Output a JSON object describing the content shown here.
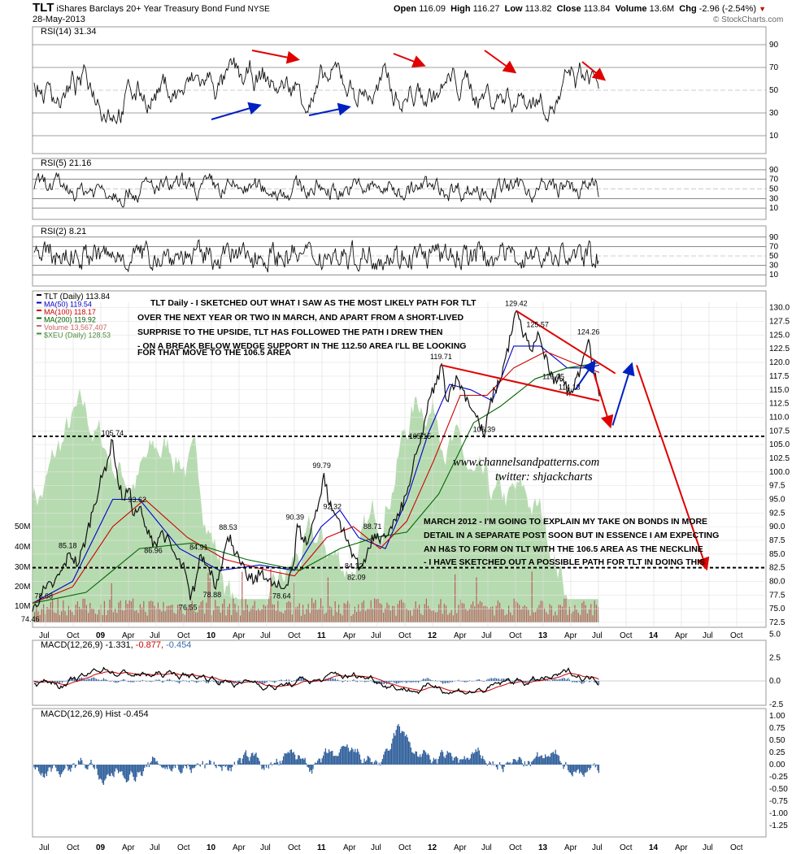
{
  "header": {
    "ticker": "TLT",
    "name": "iShares Barclays 20+ Year Treasury Bond Fund",
    "exchange": "NYSE",
    "date": "28-May-2013",
    "open_label": "Open",
    "open": "116.09",
    "high_label": "High",
    "high": "116.27",
    "low_label": "Low",
    "low": "113.82",
    "close_label": "Close",
    "close": "113.84",
    "volume_label": "Volume",
    "volume": "13.6M",
    "chg_label": "Chg",
    "chg": "-2.96 (-2.54%)",
    "chg_arrow": "▼",
    "copyright": "© StockCharts.com"
  },
  "panels": {
    "rsi14": {
      "label": "RSI(14) 31.34",
      "ticks": [
        "90",
        "70",
        "50",
        "30",
        "10"
      ]
    },
    "rsi5": {
      "label": "RSI(5) 21.16",
      "ticks": [
        "90",
        "70",
        "50",
        "30",
        "10"
      ]
    },
    "rsi2": {
      "label": "RSI(2) 8.21",
      "ticks": [
        "90",
        "70",
        "50",
        "30",
        "10"
      ]
    },
    "macd": {
      "label_prefix": "MACD(12,26,9)",
      "v1": "-1.331,",
      "v2": "-0.877,",
      "v3": "-0.454",
      "ticks": [
        "5.0",
        "2.5",
        "0.0",
        "-2.5"
      ]
    },
    "hist": {
      "label": "MACD(12,26,9) Hist -0.454",
      "ticks": [
        "1.00",
        "0.75",
        "0.50",
        "0.25",
        "0.00",
        "-0.25",
        "-0.50",
        "-0.75",
        "-1.00",
        "-1.25"
      ]
    }
  },
  "legend": [
    {
      "text": "TLT (Daily) 113.84",
      "color": "#000000"
    },
    {
      "text": "MA(50) 119.54",
      "color": "#0000cc"
    },
    {
      "text": "MA(100) 118.17",
      "color": "#cc0000"
    },
    {
      "text": "MA(200) 119.92",
      "color": "#006600"
    },
    {
      "text": "Volume 13,567,407",
      "color": "#cc6666"
    },
    {
      "text": "$XEU (Daily) 128.53",
      "color": "#4a8a3a"
    }
  ],
  "annotations": {
    "daily": [
      "TLT Daily - I SKETCHED OUT WHAT I SAW AS THE MOST LIKELY PATH FOR TLT",
      "OVER THE NEXT YEAR OR TWO IN MARCH, AND APART FROM A SHORT-LIVED",
      "SURPRISE TO THE UPSIDE, TLT HAS FOLLOWED THE PATH I DREW THEN",
      "- ON A BREAK BELOW WEDGE SUPPORT IN THE 112.50 AREA I'LL BE LOOKING",
      "FOR THAT MOVE TO THE 106.5 AREA"
    ],
    "march": [
      "MARCH 2012 - I'M GOING TO EXPLAIN MY TAKE ON BONDS IN MORE",
      "DETAIL IN A SEPARATE POST SOON BUT IN ESSENCE I AM EXPECTING",
      "AN H&S TO FORM ON TLT WITH THE 106.5 AREA AS THE NECKLINE",
      "- I HAVE SKETCHED OUT A POSSIBLE PATH FOR TLT IN DOING THIS"
    ],
    "website": "www.channelsandpatterns.com",
    "twitter": "twitter: shjackcharts"
  },
  "chart_data": {
    "type": "line",
    "x_labels": [
      "Jul",
      "Oct",
      "09",
      "Apr",
      "Jul",
      "Oct",
      "10",
      "Apr",
      "Jul",
      "Oct",
      "11",
      "Apr",
      "Jul",
      "Oct",
      "12",
      "Apr",
      "Jul",
      "Oct",
      "13",
      "Apr",
      "Jul",
      "Oct",
      "14",
      "Apr",
      "Jul",
      "Oct"
    ],
    "price_axis": {
      "ylim": [
        72.5,
        131
      ],
      "ticks": [
        "130.0",
        "127.5",
        "125.0",
        "122.5",
        "120.0",
        "117.5",
        "115.0",
        "112.5",
        "110.0",
        "107.5",
        "105.0",
        "102.5",
        "100.0",
        "97.5",
        "95.0",
        "92.5",
        "90.0",
        "87.5",
        "85.0",
        "82.5",
        "80.0",
        "77.5",
        "75.0",
        "72.5"
      ]
    },
    "volume_axis": {
      "ticks": [
        "50M",
        "40M",
        "30M",
        "20M",
        "10M"
      ]
    },
    "price_series": {
      "name": "TLT (Daily)",
      "points": [
        [
          0,
          74.46
        ],
        [
          3,
          77.5
        ],
        [
          5,
          78.68
        ],
        [
          8,
          79.5
        ],
        [
          11,
          82
        ],
        [
          14,
          85.18
        ],
        [
          17,
          83
        ],
        [
          20,
          88
        ],
        [
          23,
          94
        ],
        [
          26,
          99
        ],
        [
          28,
          102
        ],
        [
          30,
          105.74
        ],
        [
          32,
          98
        ],
        [
          34,
          95
        ],
        [
          36,
          97
        ],
        [
          38,
          92
        ],
        [
          40,
          93.62
        ],
        [
          42,
          90
        ],
        [
          44,
          88
        ],
        [
          46,
          86.96
        ],
        [
          48,
          89
        ],
        [
          50,
          88
        ],
        [
          52,
          86
        ],
        [
          54,
          84
        ],
        [
          57,
          82
        ],
        [
          59,
          76.55
        ],
        [
          61,
          80
        ],
        [
          63,
          84.91
        ],
        [
          65,
          83
        ],
        [
          67,
          82
        ],
        [
          68,
          78.88
        ],
        [
          70,
          82
        ],
        [
          72,
          86
        ],
        [
          74,
          88.53
        ],
        [
          76,
          85
        ],
        [
          78,
          83
        ],
        [
          80,
          81
        ],
        [
          83,
          80
        ],
        [
          86,
          82
        ],
        [
          88,
          80
        ],
        [
          91,
          79
        ],
        [
          94,
          78.64
        ],
        [
          96,
          81
        ],
        [
          98,
          84
        ],
        [
          99,
          90.39
        ],
        [
          101,
          88
        ],
        [
          103,
          87
        ],
        [
          106,
          93
        ],
        [
          108,
          96
        ],
        [
          109,
          99.79
        ],
        [
          111,
          94
        ],
        [
          113,
          92.32
        ],
        [
          115,
          91
        ],
        [
          117,
          88
        ],
        [
          119,
          86
        ],
        [
          121,
          84.12
        ],
        [
          122,
          82.09
        ],
        [
          124,
          84
        ],
        [
          126,
          86
        ],
        [
          128,
          88.71
        ],
        [
          130,
          87
        ],
        [
          132,
          88
        ],
        [
          134,
          90
        ],
        [
          137,
          92
        ],
        [
          140,
          96
        ],
        [
          142,
          100
        ],
        [
          144,
          104
        ],
        [
          145,
          105.15
        ],
        [
          147,
          110
        ],
        [
          149,
          114
        ],
        [
          151,
          116
        ],
        [
          153,
          119.71
        ],
        [
          155,
          113
        ],
        [
          157,
          116
        ],
        [
          159,
          117
        ],
        [
          161,
          115
        ],
        [
          163,
          113
        ],
        [
          165,
          111
        ],
        [
          167,
          109
        ],
        [
          169,
          106.39
        ],
        [
          171,
          112
        ],
        [
          173,
          115
        ],
        [
          175,
          117
        ],
        [
          177,
          121
        ],
        [
          179,
          125
        ],
        [
          181,
          129.42
        ],
        [
          183,
          126
        ],
        [
          185,
          124
        ],
        [
          187,
          122
        ],
        [
          189,
          125.57
        ],
        [
          191,
          122
        ],
        [
          193,
          119
        ],
        [
          195,
          116.05
        ],
        [
          197,
          118
        ],
        [
          199,
          116
        ],
        [
          201,
          114.13
        ],
        [
          203,
          117
        ],
        [
          205,
          119
        ],
        [
          206,
          121
        ],
        [
          208,
          124.26
        ],
        [
          210,
          118
        ],
        [
          212,
          113.84
        ]
      ]
    },
    "ma_series": [
      {
        "name": "MA(50)",
        "color": "#0000cc",
        "points": [
          [
            0,
            76
          ],
          [
            15,
            80
          ],
          [
            30,
            95
          ],
          [
            40,
            95
          ],
          [
            55,
            86
          ],
          [
            70,
            82
          ],
          [
            85,
            83
          ],
          [
            98,
            82
          ],
          [
            108,
            90
          ],
          [
            115,
            93
          ],
          [
            122,
            88
          ],
          [
            132,
            86
          ],
          [
            140,
            95
          ],
          [
            148,
            107
          ],
          [
            156,
            116
          ],
          [
            164,
            115
          ],
          [
            172,
            113
          ],
          [
            180,
            123
          ],
          [
            190,
            123
          ],
          [
            200,
            119
          ],
          [
            208,
            119
          ],
          [
            212,
            119.54
          ]
        ]
      },
      {
        "name": "MA(100)",
        "color": "#cc0000",
        "points": [
          [
            0,
            76
          ],
          [
            15,
            79
          ],
          [
            30,
            90
          ],
          [
            42,
            95
          ],
          [
            58,
            88
          ],
          [
            72,
            84
          ],
          [
            88,
            82
          ],
          [
            98,
            81
          ],
          [
            110,
            88
          ],
          [
            120,
            90
          ],
          [
            130,
            86
          ],
          [
            140,
            91
          ],
          [
            150,
            102
          ],
          [
            160,
            114
          ],
          [
            170,
            114
          ],
          [
            180,
            119
          ],
          [
            192,
            122
          ],
          [
            202,
            120
          ],
          [
            212,
            118.17
          ]
        ]
      },
      {
        "name": "MA(200)",
        "color": "#006600",
        "points": [
          [
            0,
            76
          ],
          [
            20,
            78
          ],
          [
            40,
            86
          ],
          [
            60,
            87
          ],
          [
            80,
            84
          ],
          [
            100,
            82
          ],
          [
            115,
            86
          ],
          [
            128,
            88
          ],
          [
            140,
            89
          ],
          [
            152,
            96
          ],
          [
            165,
            109
          ],
          [
            175,
            112
          ],
          [
            188,
            117
          ],
          [
            200,
            119
          ],
          [
            212,
            119.92
          ]
        ]
      }
    ],
    "trendlines_data_units": {
      "wedge_upper": [
        [
          181,
          129.42
        ],
        [
          218,
          118
        ]
      ],
      "wedge_lower": [
        [
          153,
          119.5
        ],
        [
          212,
          113
        ]
      ],
      "neckline_dotted": 106.5,
      "lower_dotted": 82.5,
      "red_path_1": [
        [
          210,
          118
        ],
        [
          216,
          108.5
        ]
      ],
      "blue_path": [
        [
          217,
          108.5
        ],
        [
          224,
          119.5
        ]
      ],
      "red_path_2": [
        [
          226,
          119.5
        ],
        [
          252,
          82.5
        ]
      ]
    },
    "point_labels": [
      {
        "text": "74.46",
        "x": 0,
        "y": 74.46
      },
      {
        "text": "78.68",
        "x": 5,
        "y": 78.68
      },
      {
        "text": "85.18",
        "x": 14,
        "y": 85.18
      },
      {
        "text": "105.74",
        "x": 30,
        "y": 105.74
      },
      {
        "text": "93.62",
        "x": 40,
        "y": 93.62
      },
      {
        "text": "86.96",
        "x": 46,
        "y": 86.96
      },
      {
        "text": "84.91",
        "x": 63,
        "y": 84.91
      },
      {
        "text": "76.55",
        "x": 59,
        "y": 76.55
      },
      {
        "text": "78.88",
        "x": 68,
        "y": 78.88
      },
      {
        "text": "88.53",
        "x": 74,
        "y": 88.53
      },
      {
        "text": "78.64",
        "x": 94,
        "y": 78.64
      },
      {
        "text": "90.39",
        "x": 99,
        "y": 90.39
      },
      {
        "text": "99.79",
        "x": 109,
        "y": 99.79
      },
      {
        "text": "92.32",
        "x": 113,
        "y": 92.32
      },
      {
        "text": "88.71",
        "x": 128,
        "y": 88.71
      },
      {
        "text": "84.12",
        "x": 121,
        "y": 84.12
      },
      {
        "text": "82.09",
        "x": 122,
        "y": 82.09
      },
      {
        "text": "105.15",
        "x": 145,
        "y": 105.15
      },
      {
        "text": "119.71",
        "x": 153,
        "y": 119.71
      },
      {
        "text": "106.39",
        "x": 169,
        "y": 106.39
      },
      {
        "text": "129.42",
        "x": 181,
        "y": 129.42
      },
      {
        "text": "125.57",
        "x": 189,
        "y": 125.57
      },
      {
        "text": "116.05",
        "x": 195,
        "y": 116.05
      },
      {
        "text": "124.26",
        "x": 208,
        "y": 124.26
      },
      {
        "text": "114.13",
        "x": 201,
        "y": 114.13
      }
    ]
  }
}
